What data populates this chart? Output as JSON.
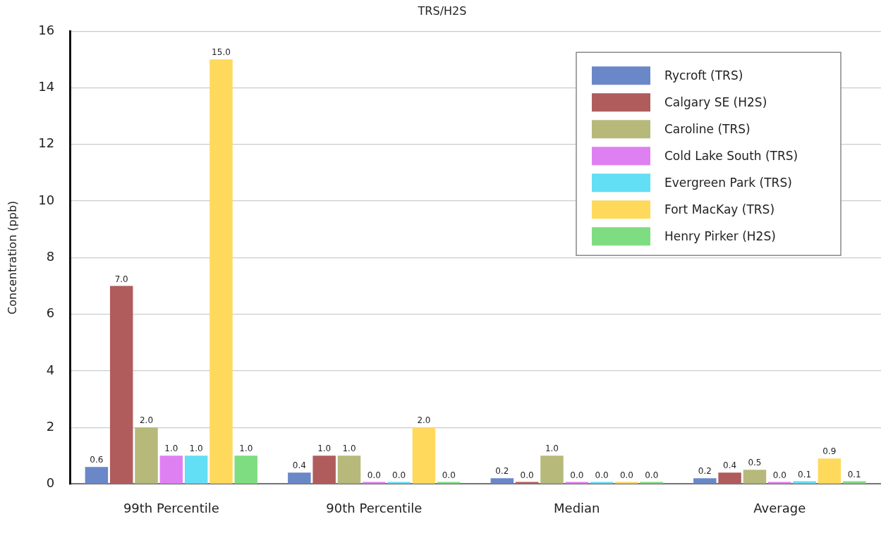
{
  "chart_data": {
    "type": "bar",
    "title": "TRS/H2S",
    "ylabel": "Concentration (ppb)",
    "categories": [
      "99th Percentile",
      "90th Percentile",
      "Median",
      "Average"
    ],
    "series": [
      {
        "name": "Rycroft (TRS)",
        "color": "#6a87c8",
        "values": [
          0.6,
          0.4,
          0.2,
          0.2
        ],
        "value_labels": [
          "0.6",
          "0.4",
          "0.2",
          "0.2"
        ]
      },
      {
        "name": "Calgary SE (H2S)",
        "color": "#b05c5c",
        "values": [
          7.0,
          1.0,
          0.0,
          0.4
        ],
        "value_labels": [
          "7.0",
          "1.0",
          "0.0",
          "0.4"
        ]
      },
      {
        "name": "Caroline (TRS)",
        "color": "#b6b97a",
        "values": [
          2.0,
          1.0,
          1.0,
          0.5
        ],
        "value_labels": [
          "2.0",
          "1.0",
          "1.0",
          "0.5"
        ]
      },
      {
        "name": "Cold Lake South (TRS)",
        "color": "#df80f2",
        "values": [
          1.0,
          0.0,
          0.0,
          0.0
        ],
        "value_labels": [
          "1.0",
          "0.0",
          "0.0",
          "0.0"
        ]
      },
      {
        "name": "Evergreen Park (TRS)",
        "color": "#62dff5",
        "values": [
          1.0,
          0.0,
          0.0,
          0.1
        ],
        "value_labels": [
          "1.0",
          "0.0",
          "0.0",
          "0.1"
        ]
      },
      {
        "name": "Fort MacKay (TRS)",
        "color": "#ffd95c",
        "values": [
          15.0,
          2.0,
          0.0,
          0.9
        ],
        "value_labels": [
          "15.0",
          "2.0",
          "0.0",
          "0.9"
        ]
      },
      {
        "name": "Henry Pirker (H2S)",
        "color": "#7fdd81",
        "values": [
          1.0,
          0.0,
          0.0,
          0.1
        ],
        "value_labels": [
          "1.0",
          "0.0",
          "0.0",
          "0.1"
        ]
      }
    ],
    "ylim": [
      0,
      16
    ],
    "yticks": [
      0,
      2,
      4,
      6,
      8,
      10,
      12,
      14,
      16
    ],
    "grid": "y",
    "legend": "top right"
  }
}
